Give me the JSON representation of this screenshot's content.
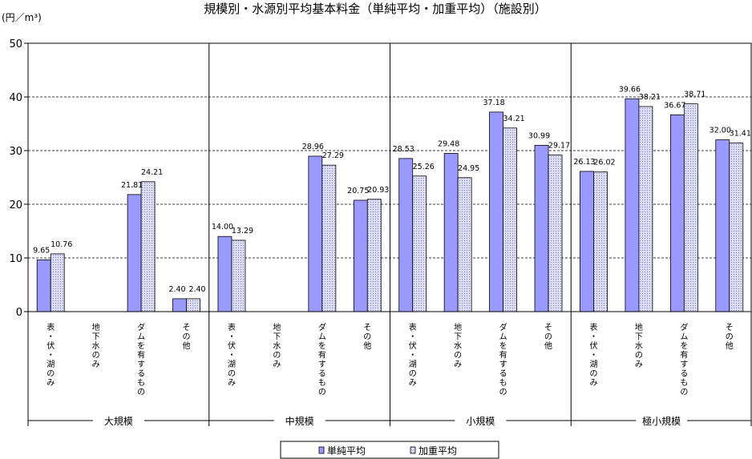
{
  "title": "規模別・水源別平均基本料金（単純平均・加重平均）（施設別）",
  "unit_label": "(円／m³)",
  "colors": {
    "simple_fill": "#9999ff",
    "weighted_fill": "#dcdcf4",
    "weighted_dot": "#7a7ab8",
    "grid": "#000000"
  },
  "chart_data": {
    "type": "bar",
    "title": "規模別・水源別平均基本料金（単純平均・加重平均）（施設別）",
    "ylabel": "(円／m³)",
    "xlabel": "",
    "ylim": [
      0,
      50
    ],
    "yticks": [
      0,
      10,
      20,
      30,
      40,
      50
    ],
    "grid": true,
    "legend_position": "bottom-center",
    "groups": [
      "大規模",
      "中規模",
      "小規模",
      "極小規模"
    ],
    "categories": [
      "表・伏・湖のみ",
      "地下水のみ",
      "ダムを有するもの",
      "その他"
    ],
    "series": [
      {
        "name": "単純平均",
        "values": [
          [
            9.65,
            null,
            21.81,
            2.4
          ],
          [
            14.0,
            null,
            28.96,
            20.75
          ],
          [
            28.53,
            29.48,
            37.18,
            30.99
          ],
          [
            26.13,
            39.66,
            36.67,
            32.0
          ]
        ],
        "labels": [
          [
            "9.65",
            "",
            "21.81",
            "2.40"
          ],
          [
            "14.00",
            "",
            "28.96",
            "20.75"
          ],
          [
            "28.53",
            "29.48",
            "37.18",
            "30.99"
          ],
          [
            "26.13",
            "39.66",
            "36.67",
            "32.00"
          ]
        ]
      },
      {
        "name": "加重平均",
        "values": [
          [
            10.76,
            null,
            24.21,
            2.4
          ],
          [
            13.29,
            null,
            27.29,
            20.93
          ],
          [
            25.26,
            24.95,
            34.21,
            29.17
          ],
          [
            26.02,
            38.21,
            38.71,
            31.41
          ]
        ],
        "labels": [
          [
            "10.76",
            "",
            "24.21",
            "2.40"
          ],
          [
            "13.29",
            "",
            "27.29",
            "20.93"
          ],
          [
            "25.26",
            "24.95",
            "34.21",
            "29.17"
          ],
          [
            "26.02",
            "38.21",
            "38.71",
            "31.41"
          ]
        ]
      }
    ]
  }
}
